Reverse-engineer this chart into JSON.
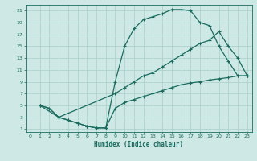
{
  "xlabel": "Humidex (Indice chaleur)",
  "background_color": "#cde8e5",
  "grid_color": "#aacfcc",
  "line_color": "#1a6b5e",
  "xlim": [
    -0.5,
    23.5
  ],
  "ylim": [
    0.5,
    22
  ],
  "xticks": [
    0,
    1,
    2,
    3,
    4,
    5,
    6,
    7,
    8,
    9,
    10,
    11,
    12,
    13,
    14,
    15,
    16,
    17,
    18,
    19,
    20,
    21,
    22,
    23
  ],
  "yticks": [
    1,
    3,
    5,
    7,
    9,
    11,
    13,
    15,
    17,
    19,
    21
  ],
  "top_x": [
    1,
    2,
    3,
    4,
    5,
    6,
    7,
    8,
    9,
    10,
    11,
    12,
    13,
    14,
    15,
    16,
    17,
    18,
    19,
    20,
    21,
    22,
    23
  ],
  "top_y": [
    5,
    4.5,
    3,
    2.5,
    2,
    1.5,
    1.2,
    1.2,
    9,
    15,
    18,
    19.5,
    20,
    20.5,
    21.2,
    21.2,
    21,
    19,
    18.5,
    15,
    12.5,
    10,
    10
  ],
  "mid_x": [
    1,
    3,
    9,
    10,
    11,
    12,
    13,
    14,
    15,
    16,
    17,
    18,
    19,
    20,
    21,
    22,
    23
  ],
  "mid_y": [
    5,
    3,
    7,
    8,
    9,
    10,
    10.5,
    11.5,
    12.5,
    13.5,
    14.5,
    15.5,
    16,
    17.5,
    15,
    13,
    10
  ],
  "bot_x": [
    1,
    2,
    3,
    4,
    5,
    6,
    7,
    8,
    9,
    10,
    11,
    12,
    13,
    14,
    15,
    16,
    17,
    18,
    19,
    20,
    21,
    22,
    23
  ],
  "bot_y": [
    5,
    4.5,
    3,
    2.5,
    2,
    1.5,
    1.2,
    1.2,
    4.5,
    5.5,
    6,
    6.5,
    7,
    7.5,
    8,
    8.5,
    8.8,
    9,
    9.3,
    9.5,
    9.7,
    10,
    10
  ]
}
